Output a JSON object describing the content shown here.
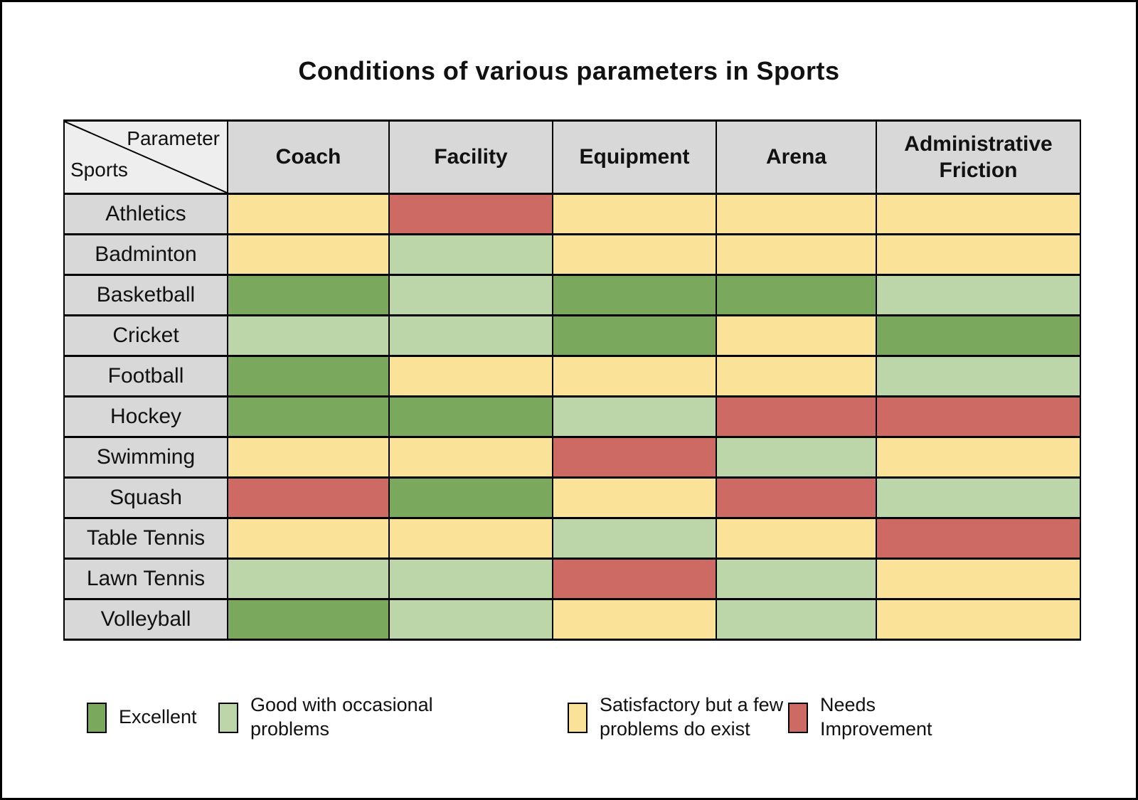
{
  "title": "Conditions of various parameters in Sports",
  "chart_data": {
    "type": "heatmap",
    "corner": {
      "top_right": "Parameter",
      "bottom_left": "Sports"
    },
    "columns": [
      "Coach",
      "Facility",
      "Equipment",
      "Arena",
      "Administrative Friction"
    ],
    "rows": [
      "Athletics",
      "Badminton",
      "Basketball",
      "Cricket",
      "Football",
      "Hockey",
      "Swimming",
      "Squash",
      "Table Tennis",
      "Lawn Tennis",
      "Volleyball"
    ],
    "values": [
      [
        "satisfactory",
        "needs",
        "satisfactory",
        "satisfactory",
        "satisfactory"
      ],
      [
        "satisfactory",
        "good",
        "satisfactory",
        "satisfactory",
        "satisfactory"
      ],
      [
        "excellent",
        "good",
        "excellent",
        "excellent",
        "good"
      ],
      [
        "good",
        "good",
        "excellent",
        "satisfactory",
        "excellent"
      ],
      [
        "excellent",
        "satisfactory",
        "satisfactory",
        "satisfactory",
        "good"
      ],
      [
        "excellent",
        "excellent",
        "good",
        "needs",
        "needs"
      ],
      [
        "satisfactory",
        "satisfactory",
        "needs",
        "good",
        "satisfactory"
      ],
      [
        "needs",
        "excellent",
        "satisfactory",
        "needs",
        "good"
      ],
      [
        "satisfactory",
        "satisfactory",
        "good",
        "satisfactory",
        "needs"
      ],
      [
        "good",
        "good",
        "needs",
        "good",
        "satisfactory"
      ],
      [
        "excellent",
        "good",
        "satisfactory",
        "good",
        "satisfactory"
      ]
    ],
    "legend": [
      {
        "key": "excellent",
        "label": "Excellent",
        "color": "#7AA85C"
      },
      {
        "key": "good",
        "label": "Good with occasional problems",
        "color": "#BDD6A9"
      },
      {
        "key": "satisfactory",
        "label": "Satisfactory but a few problems do exist",
        "color": "#FAE398"
      },
      {
        "key": "needs",
        "label": "Needs Improvement",
        "color": "#CD6A63"
      }
    ],
    "legend_position": "bottom",
    "grid": true
  },
  "colors": {
    "background": "#FFFFFF",
    "frame": "#000000",
    "grid_line": "#000000",
    "header_bg": "#D8D8D8",
    "corner_bg": "#EEEEEE"
  }
}
